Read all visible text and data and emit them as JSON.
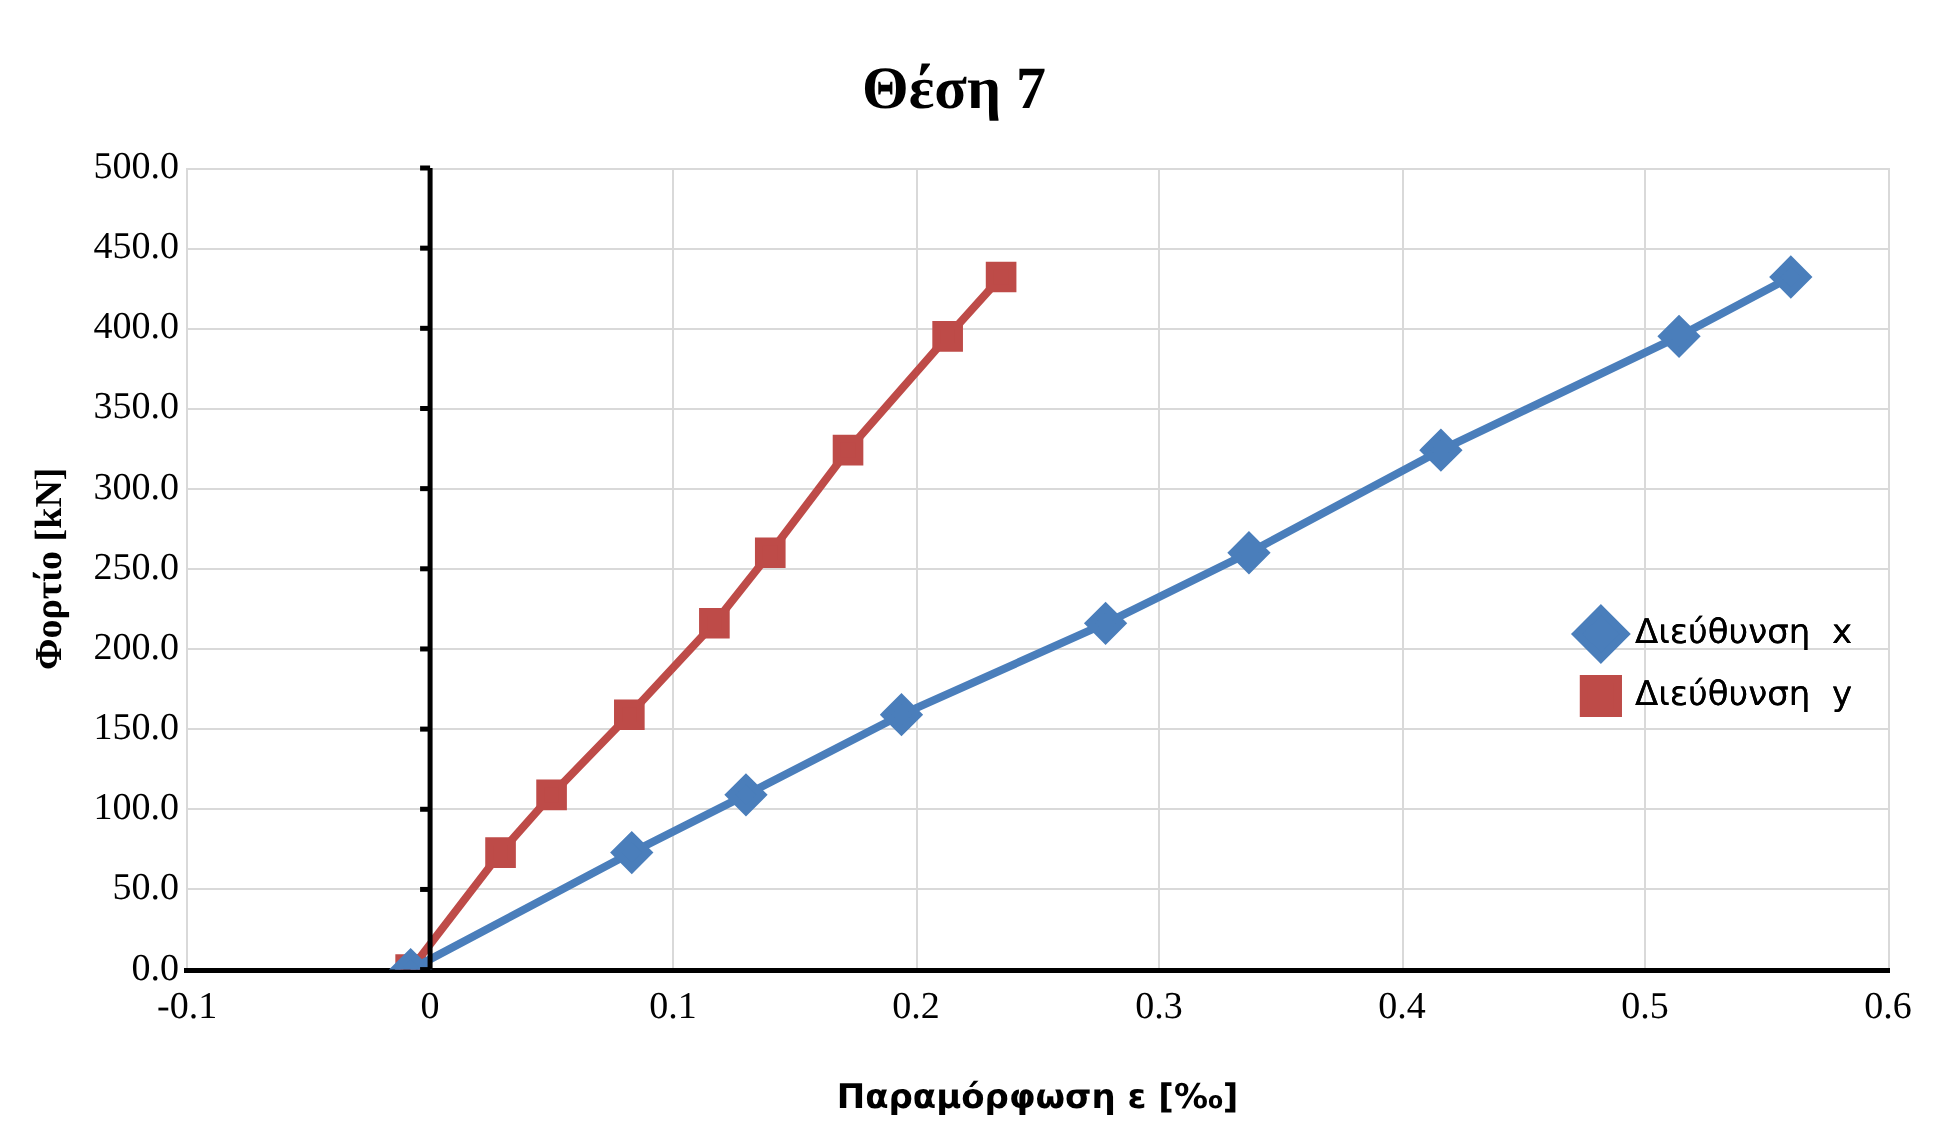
{
  "chart_data": {
    "type": "line",
    "title": "Θέση 7",
    "xlabel": "Παραμόρφωση ε [‰]",
    "ylabel": "Φορτίο [kN]",
    "series": [
      {
        "name": "Διεύθυνση  x",
        "color": "#4a7ebb",
        "marker": "diamond",
        "x": [
          -0.008,
          0.083,
          0.13,
          0.194,
          0.278,
          0.337,
          0.416,
          0.514,
          0.56
        ],
        "values": [
          0,
          73,
          109,
          159,
          216,
          260,
          324,
          395,
          432
        ]
      },
      {
        "name": "Διεύθυνση  y",
        "color": "#be4b48",
        "marker": "square",
        "x": [
          -0.008,
          0.029,
          0.05,
          0.082,
          0.117,
          0.14,
          0.172,
          0.213,
          0.235
        ],
        "values": [
          0,
          73,
          109,
          159,
          216,
          260,
          324,
          395,
          432
        ]
      }
    ],
    "xlim": [
      -0.1,
      0.6
    ],
    "xticks": [
      -0.1,
      0,
      0.1,
      0.2,
      0.3,
      0.4,
      0.5,
      0.6
    ],
    "ylim": [
      0,
      500
    ],
    "yticks": [
      {
        "value": 0,
        "label": "0.0"
      },
      {
        "value": 50,
        "label": "50.0"
      },
      {
        "value": 100,
        "label": "100.0"
      },
      {
        "value": 150,
        "label": "150.0"
      },
      {
        "value": 200,
        "label": "200.0"
      },
      {
        "value": 250,
        "label": "250.0"
      },
      {
        "value": 300,
        "label": "300.0"
      },
      {
        "value": 350,
        "label": "350.0"
      },
      {
        "value": 400,
        "label": "400.0"
      },
      {
        "value": 450,
        "label": "450.0"
      },
      {
        "value": 500,
        "label": "500.0"
      }
    ],
    "grid": true,
    "legend": "right",
    "line_style": "solid"
  }
}
